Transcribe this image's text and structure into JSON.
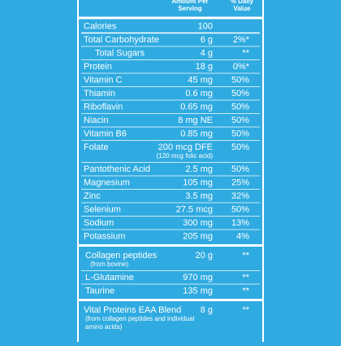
{
  "header": {
    "amount": [
      "Amount Per",
      "Serving"
    ],
    "daily_value": [
      "% Daily",
      "Value"
    ]
  },
  "sections": [
    {
      "rows": [
        {
          "name": "Calories",
          "amount": "100"
        },
        {
          "name": "Total Carbohydrate",
          "amount": "6 g",
          "dv": "2%*"
        },
        {
          "name": "Total Sugars",
          "amount": "4 g",
          "dv": "**"
        },
        {
          "name": "Protein",
          "amount": "18 g",
          "dv": "0%*"
        },
        {
          "name": "Vitamin C",
          "amount": "45 mg",
          "dv": "50%"
        },
        {
          "name": "Thiamin",
          "amount": "0.6 mg",
          "dv": "50%"
        },
        {
          "name": "Riboflavin",
          "amount": "0.65 mg",
          "dv": "50%"
        },
        {
          "name": "Niacin",
          "amount": "8 mg NE",
          "dv": "50%"
        },
        {
          "name": "Vitamin B6",
          "amount": "0.85 mg",
          "dv": "50%"
        },
        {
          "name": "Folate",
          "amount": "200 mcg DFE",
          "amount_note": "(120 mcg folic acid)",
          "dv": "50%"
        },
        {
          "name": "Pantothenic Acid",
          "amount": "2.5 mg",
          "dv": "50%"
        },
        {
          "name": "Magnesium",
          "amount": "105 mg",
          "dv": "25%"
        },
        {
          "name": "Zinc",
          "amount": "3.5 mg",
          "dv": "32%"
        },
        {
          "name": "Selenium",
          "amount": "27.5 mcg",
          "dv": "50%"
        },
        {
          "name": "Sodium",
          "amount": "300 mg",
          "dv": "13%"
        },
        {
          "name": "Potassium",
          "amount": "205 mg",
          "dv": "4%"
        }
      ]
    },
    {
      "rows": [
        {
          "name": "Collagen peptides",
          "name_note": [
            "(from bovine)"
          ],
          "amount": "20 g",
          "dv": "**"
        },
        {
          "name": "L-Glutamine",
          "amount": "970 mg",
          "dv": "**"
        },
        {
          "name": "Taurine",
          "amount": "135 mg",
          "dv": "**"
        }
      ]
    },
    {
      "rows": [
        {
          "name": "Vital Proteins EAA Blend",
          "name_note": [
            "(from collagen peptides and individual",
            "amino acids)"
          ],
          "amount": "8 g",
          "dv": "**"
        }
      ]
    }
  ]
}
